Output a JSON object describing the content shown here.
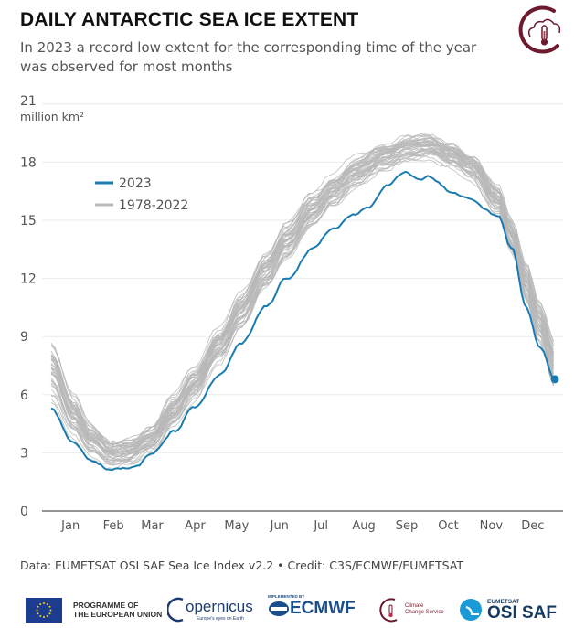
{
  "header": {
    "title": "DAILY ANTARCTIC SEA ICE EXTENT",
    "subtitle": "In 2023 a record low extent for the corresponding time of the year was observed for most months",
    "logo_icon": "climate-change-service-thermometer-cloud-icon"
  },
  "chart_data": {
    "type": "line",
    "title": "DAILY ANTARCTIC SEA ICE EXTENT",
    "subtitle": "In 2023 a record low extent for the corresponding time of the year was observed for most months",
    "xlabel": "",
    "ylabel": "million km²",
    "ylim": [
      0,
      21
    ],
    "yticks": [
      0,
      3,
      6,
      9,
      12,
      15,
      18,
      21
    ],
    "xlim_day_of_year": [
      1,
      365
    ],
    "month_ticks": [
      "Jan",
      "Feb",
      "Mar",
      "Apr",
      "May",
      "Jun",
      "Jul",
      "Aug",
      "Sep",
      "Oct",
      "Nov",
      "Dec"
    ],
    "grid": "horizontal",
    "legend": {
      "placement": "top-left",
      "entries": [
        {
          "label": "2023",
          "color": "#1a7bb0"
        },
        {
          "label": "1978-2022",
          "color": "#b8b8b8"
        }
      ]
    },
    "series": [
      {
        "name": "2023",
        "color": "#1a7bb0",
        "end_marker": true,
        "day_of_year": [
          1,
          17,
          30,
          44,
          57,
          63,
          73,
          90,
          104,
          123,
          138,
          157,
          171,
          190,
          205,
          220,
          230,
          243,
          257,
          267,
          274,
          291,
          304,
          314,
          324,
          334,
          344,
          354,
          365
        ],
        "values": [
          5.3,
          3.6,
          2.6,
          2.15,
          2.2,
          2.35,
          2.9,
          4.1,
          5.3,
          7.0,
          8.6,
          10.6,
          12.0,
          13.5,
          14.6,
          15.3,
          15.6,
          16.8,
          17.45,
          17.1,
          17.25,
          16.4,
          16.1,
          15.6,
          15.2,
          13.5,
          10.5,
          8.5,
          6.8
        ]
      },
      {
        "name": "1978-2022 (mean envelope)",
        "color": "#b8b8b8",
        "line_count": 45,
        "day_of_year": [
          1,
          17,
          30,
          44,
          57,
          73,
          90,
          104,
          123,
          138,
          157,
          171,
          190,
          205,
          220,
          243,
          257,
          274,
          291,
          304,
          324,
          334,
          344,
          354,
          365
        ],
        "mean_values": [
          7.3,
          5.0,
          3.7,
          3.0,
          3.1,
          3.7,
          5.2,
          6.6,
          8.6,
          10.3,
          12.4,
          13.9,
          15.5,
          16.5,
          17.4,
          18.3,
          18.7,
          18.8,
          18.4,
          17.8,
          16.1,
          14.2,
          11.9,
          9.8,
          7.6
        ],
        "spread": [
          1.3,
          0.9,
          0.7,
          0.55,
          0.55,
          0.6,
          0.7,
          0.75,
          0.8,
          0.8,
          0.8,
          0.8,
          0.75,
          0.7,
          0.7,
          0.6,
          0.6,
          0.55,
          0.55,
          0.6,
          0.7,
          0.8,
          0.9,
          1.0,
          1.1
        ]
      }
    ]
  },
  "footer": {
    "credit": "Data: EUMETSAT OSI SAF Sea Ice Index v2.2 • Credit: C3S/ECMWF/EUMETSAT",
    "logos": {
      "eu_line1": "PROGRAMME OF",
      "eu_line2": "THE EUROPEAN UNION",
      "copernicus": "opernicus",
      "copernicus_tagline": "Europe's eyes on Earth",
      "ecmwf_small": "IMPLEMENTED BY",
      "ecmwf": "ECMWF",
      "c3s_line1": "Climate",
      "c3s_line2": "Change Service",
      "osi_small": "EUMETSAT",
      "osi": "OSI SAF"
    }
  }
}
